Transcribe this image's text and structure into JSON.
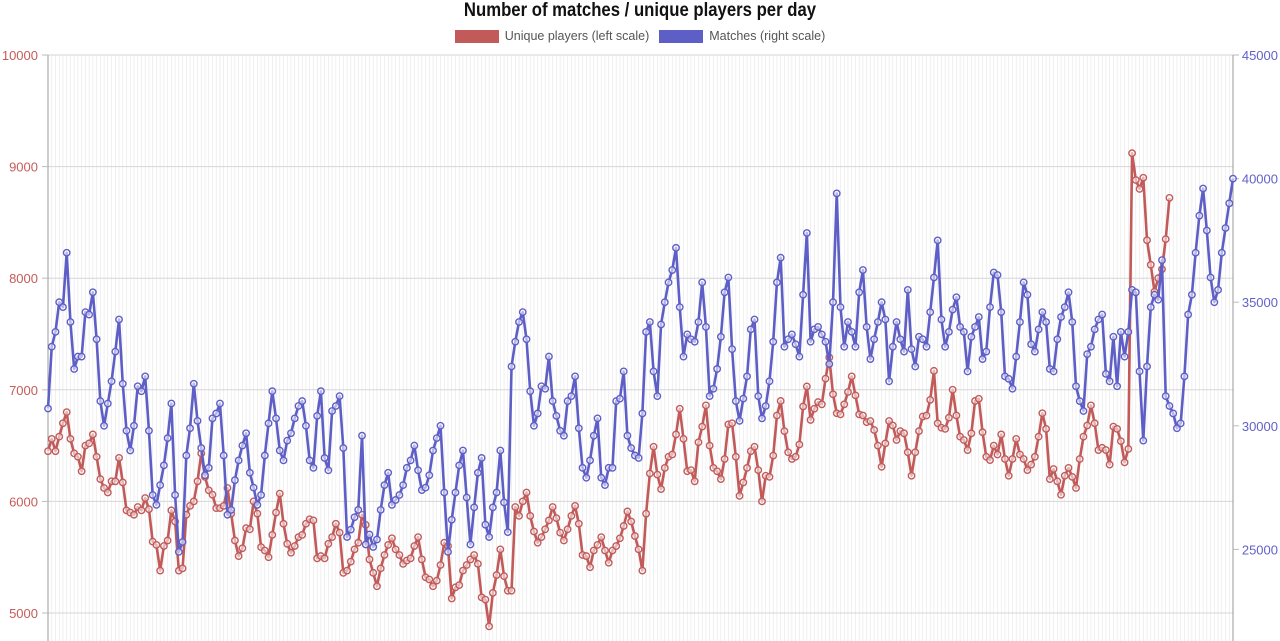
{
  "chart_data": {
    "type": "line",
    "title": "Number of matches / unique players per day",
    "left_axis": {
      "ticks": [
        "5000",
        "6000",
        "7000",
        "8000",
        "9000",
        "10000"
      ],
      "color": "#c75b5b"
    },
    "right_axis": {
      "ticks": [
        "25000",
        "30000",
        "35000",
        "40000",
        "45000"
      ],
      "color": "#6161c9"
    },
    "legend_position": "top",
    "grid": true,
    "series": [
      {
        "name": "Unique players (left scale)",
        "axis": "left",
        "color": "#c25a5a",
        "values": [
          6450,
          6560,
          6450,
          6580,
          6700,
          6800,
          6560,
          6430,
          6400,
          6270,
          6500,
          6520,
          6600,
          6400,
          6200,
          6120,
          6080,
          6180,
          6180,
          6390,
          6170,
          5920,
          5900,
          5880,
          5950,
          5920,
          6030,
          5930,
          5640,
          5610,
          5380,
          5600,
          5650,
          5920,
          5820,
          5380,
          5400,
          5880,
          5960,
          6000,
          6180,
          6430,
          6220,
          6100,
          6060,
          5940,
          5940,
          5960,
          6120,
          5890,
          5650,
          5510,
          5580,
          5760,
          5750,
          6000,
          5890,
          5590,
          5560,
          5500,
          5700,
          5900,
          6070,
          5800,
          5620,
          5540,
          5600,
          5680,
          5700,
          5800,
          5840,
          5830,
          5490,
          5510,
          5490,
          5620,
          5680,
          5800,
          5720,
          5360,
          5380,
          5460,
          5570,
          5630,
          5880,
          5790,
          5480,
          5360,
          5240,
          5400,
          5520,
          5610,
          5670,
          5570,
          5520,
          5440,
          5470,
          5490,
          5600,
          5680,
          5480,
          5320,
          5300,
          5240,
          5290,
          5430,
          5630,
          5600,
          5130,
          5230,
          5250,
          5380,
          5430,
          5480,
          5520,
          5440,
          5140,
          5120,
          4880,
          5180,
          5340,
          5570,
          5330,
          5200,
          5200,
          5950,
          5870,
          6000,
          6080,
          5870,
          5730,
          5630,
          5680,
          5750,
          5830,
          5950,
          5850,
          5720,
          5650,
          5750,
          5870,
          5960,
          5800,
          5520,
          5510,
          5410,
          5560,
          5610,
          5680,
          5560,
          5450,
          5560,
          5600,
          5670,
          5780,
          5910,
          5820,
          5690,
          5570,
          5380,
          5890,
          6250,
          6490,
          6240,
          6110,
          6300,
          6400,
          6420,
          6600,
          6830,
          6560,
          6270,
          6280,
          6180,
          6530,
          6670,
          6860,
          6500,
          6300,
          6270,
          6200,
          6380,
          6690,
          6700,
          6400,
          6050,
          6170,
          6300,
          6450,
          6490,
          6280,
          6000,
          6230,
          6220,
          6410,
          6770,
          6900,
          6630,
          6440,
          6380,
          6400,
          6510,
          6850,
          7030,
          6730,
          6830,
          6890,
          6870,
          7100,
          7290,
          6960,
          6790,
          6780,
          6870,
          6980,
          7120,
          6950,
          6780,
          6770,
          6710,
          6720,
          6640,
          6500,
          6310,
          6520,
          6720,
          6680,
          6550,
          6630,
          6610,
          6440,
          6230,
          6440,
          6630,
          6760,
          6770,
          6910,
          7170,
          6700,
          6660,
          6650,
          6750,
          7000,
          6770,
          6580,
          6550,
          6460,
          6610,
          6900,
          6920,
          6620,
          6400,
          6370,
          6500,
          6420,
          6600,
          6380,
          6230,
          6380,
          6560,
          6420,
          6380,
          6280,
          6330,
          6400,
          6580,
          6790,
          6650,
          6200,
          6290,
          6180,
          6060,
          6230,
          6300,
          6220,
          6120,
          6380,
          6580,
          6680,
          6860,
          6700,
          6460,
          6480,
          6460,
          6330,
          6670,
          6650,
          6540,
          6350,
          6470,
          9120,
          8880,
          8800,
          8900,
          8340,
          8120,
          7880,
          8000,
          8080,
          8350,
          8720
        ]
      },
      {
        "name": "Matches (right scale)",
        "axis": "right",
        "color": "#5e5ec7",
        "values": [
          30700,
          33200,
          33800,
          35000,
          34800,
          37000,
          34200,
          32300,
          32800,
          32800,
          34600,
          34500,
          35400,
          33500,
          31000,
          30000,
          30900,
          31800,
          33000,
          34300,
          31700,
          29800,
          29000,
          30000,
          31600,
          31400,
          32000,
          29800,
          27200,
          26800,
          27600,
          28400,
          29500,
          30900,
          27200,
          24900,
          25300,
          28800,
          29900,
          31700,
          30200,
          29100,
          28000,
          28300,
          30300,
          30500,
          30900,
          28800,
          26400,
          26600,
          27800,
          28600,
          29200,
          29700,
          28100,
          27500,
          26800,
          27200,
          28800,
          30100,
          31400,
          30300,
          29000,
          28600,
          29400,
          29700,
          30300,
          30800,
          31000,
          30000,
          28600,
          28300,
          30400,
          31400,
          28700,
          28200,
          30600,
          30800,
          31200,
          29100,
          25500,
          25800,
          26300,
          26600,
          29600,
          25200,
          25600,
          25100,
          25400,
          26600,
          27600,
          28100,
          26800,
          27000,
          27200,
          27600,
          28300,
          28600,
          29200,
          28200,
          27400,
          27500,
          28000,
          29000,
          29500,
          30000,
          27300,
          24900,
          26200,
          27300,
          28400,
          29000,
          27100,
          25200,
          26700,
          28100,
          28700,
          26000,
          25500,
          26700,
          27300,
          29000,
          26900,
          25700,
          32400,
          33400,
          34200,
          34600,
          33500,
          31400,
          30000,
          30500,
          31600,
          31500,
          32800,
          31000,
          30400,
          29800,
          29600,
          31000,
          31200,
          32000,
          29900,
          28300,
          27900,
          28600,
          29600,
          30300,
          27900,
          27600,
          28300,
          28300,
          31000,
          31100,
          32200,
          29600,
          29100,
          28800,
          28700,
          30500,
          33800,
          34200,
          32200,
          31200,
          34100,
          35000,
          35800,
          36300,
          37200,
          34800,
          32800,
          33700,
          33500,
          33400,
          34200,
          35800,
          34000,
          31200,
          31500,
          32300,
          33600,
          35400,
          36000,
          33100,
          31000,
          30200,
          31100,
          32000,
          33900,
          34300,
          31200,
          30300,
          30800,
          31800,
          33400,
          35800,
          36800,
          33200,
          33500,
          33700,
          33300,
          32800,
          35300,
          37800,
          33400,
          33900,
          34000,
          33700,
          33400,
          32500,
          35000,
          39400,
          34800,
          33200,
          34200,
          33800,
          33200,
          35400,
          36300,
          34000,
          32700,
          33500,
          34200,
          35000,
          34300,
          31800,
          33200,
          34200,
          33500,
          33000,
          35500,
          33100,
          32400,
          33600,
          33500,
          33200,
          34600,
          36000,
          37500,
          34300,
          33200,
          33800,
          34700,
          35200,
          34000,
          33800,
          32200,
          33600,
          34000,
          34400,
          32700,
          33000,
          34800,
          36200,
          36100,
          34600,
          32000,
          31900,
          31500,
          32800,
          34200,
          35800,
          35300,
          33300,
          33000,
          33900,
          34600,
          34200,
          32300,
          32200,
          33500,
          34400,
          34800,
          35400,
          34200,
          31600,
          31000,
          30600,
          32900,
          33200,
          33900,
          34300,
          34500,
          32100,
          31800,
          33600,
          31600,
          33800,
          32800,
          33800,
          35500,
          35400,
          32200,
          29400,
          32400,
          34800,
          35300,
          35100,
          36700,
          31200,
          30800,
          30500,
          29900,
          30100,
          32000,
          34500,
          35300,
          37000,
          38500,
          39600,
          37900,
          36000,
          35000,
          35500,
          37000,
          38000,
          39000,
          40000
        ]
      }
    ]
  }
}
